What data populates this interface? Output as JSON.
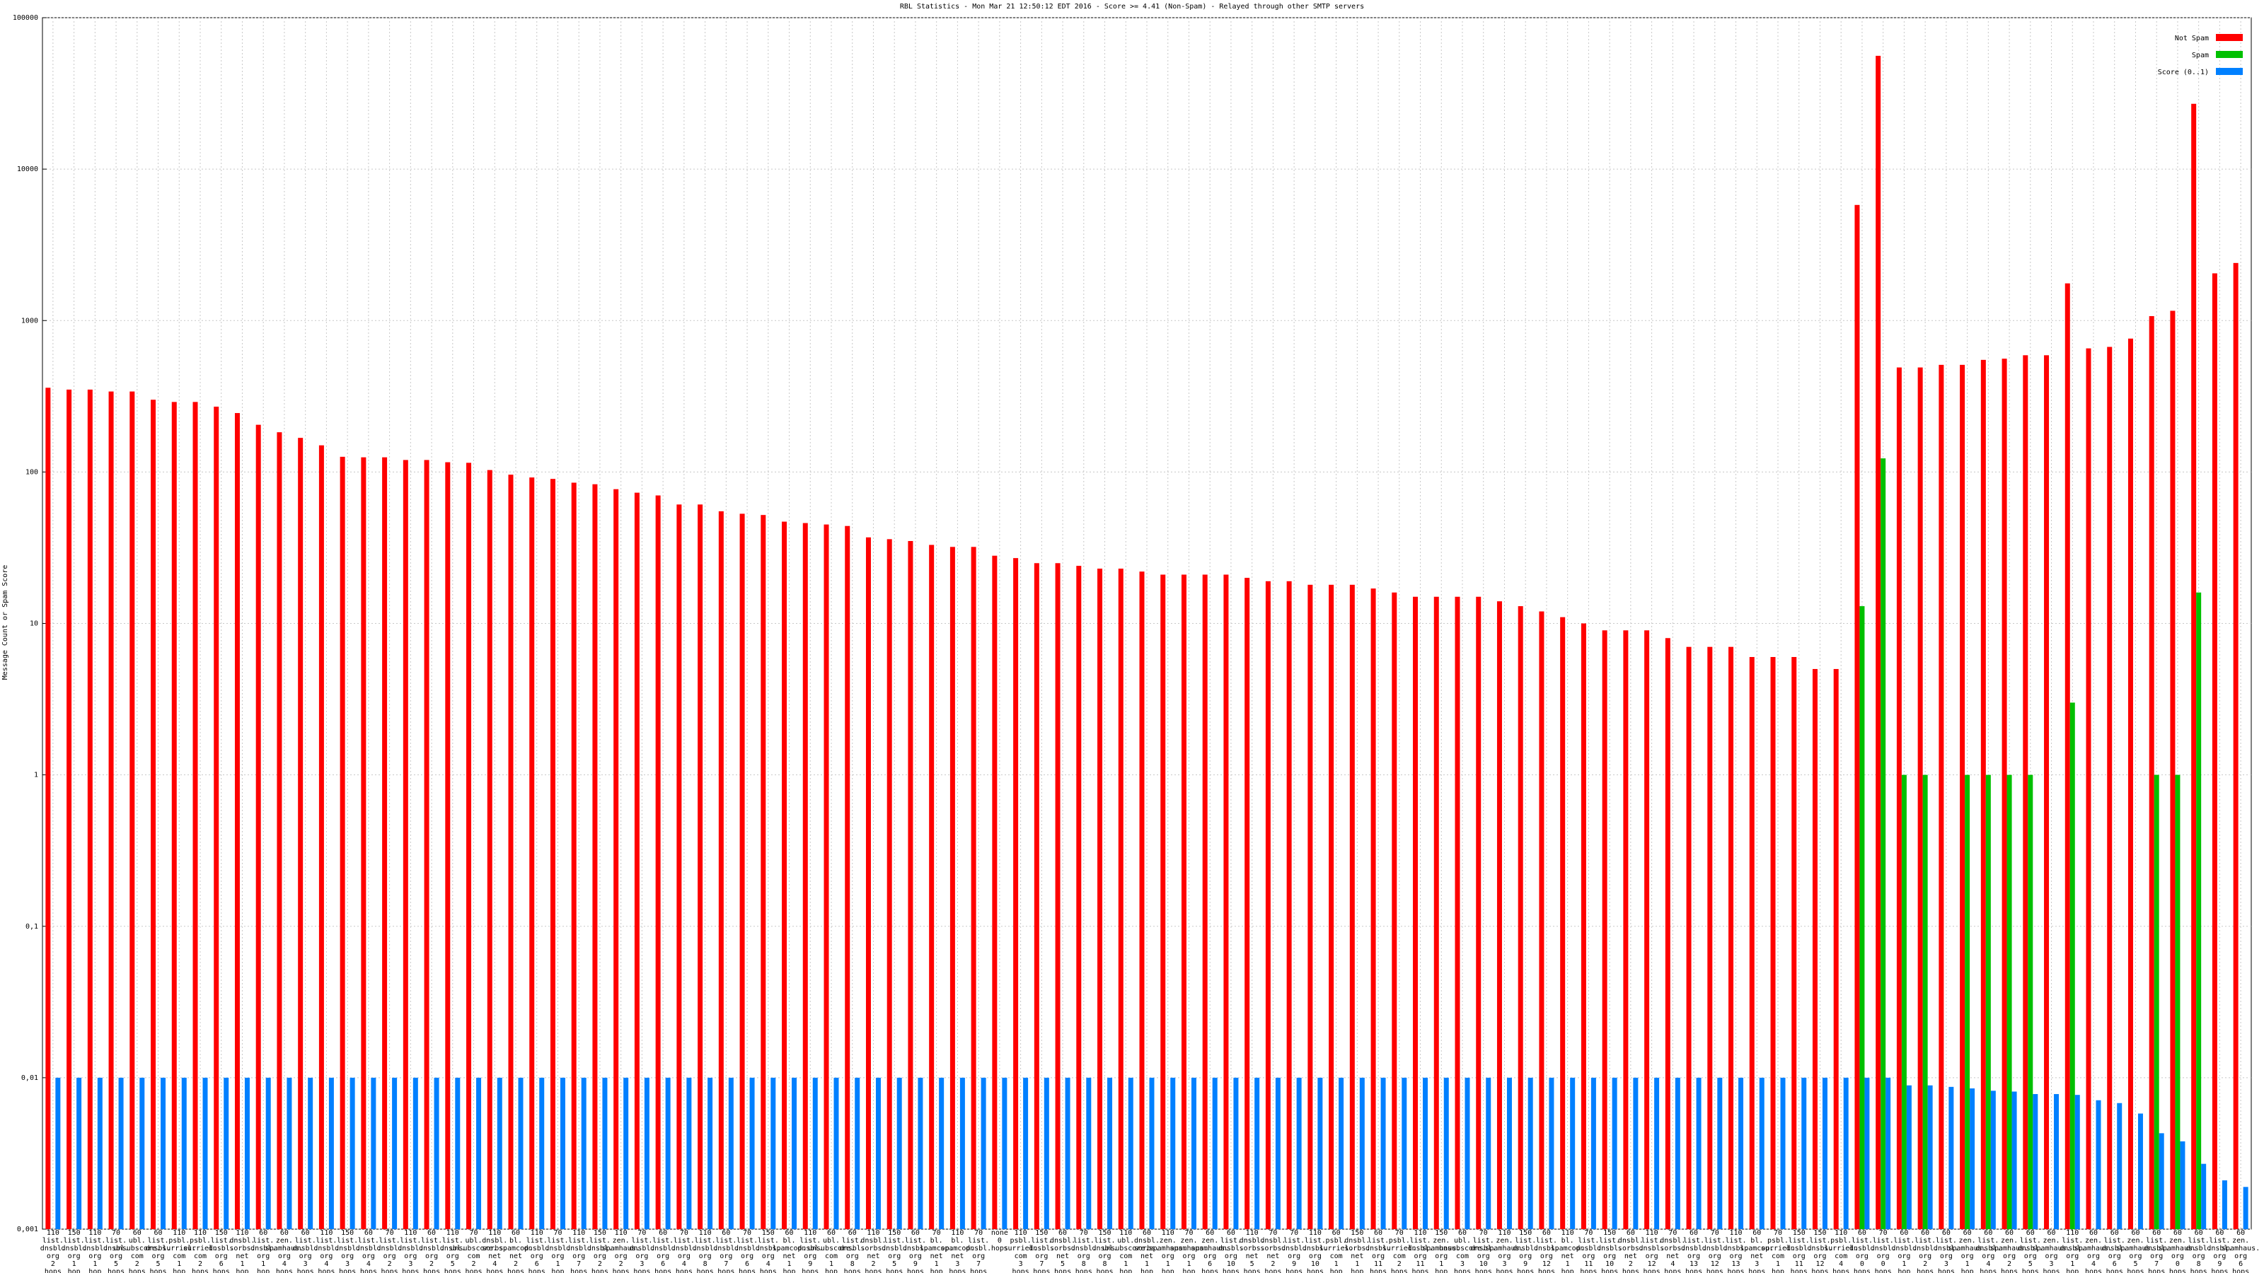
{
  "chart_data": {
    "type": "bar",
    "title": "RBL Statistics - Mon Mar 21 12:50:12 EDT 2016 - Score >= 4.41 (Non-Spam) - Relayed through other SMTP servers",
    "y_label": "Message Count or Spam Score",
    "log_scale": true,
    "grid": true,
    "legend": "top-right",
    "ylim": [
      0.001,
      100000
    ],
    "yticks": [
      {
        "value": 0.001,
        "label": "0,001"
      },
      {
        "value": 0.01,
        "label": "0,01"
      },
      {
        "value": 0.1,
        "label": "0,1"
      },
      1,
      10,
      100,
      1000,
      10000,
      100000
    ],
    "categories": [
      "110 list. dnsbl. org 2 hops",
      "150 list. dnsbl. org 1 hop",
      "110 list. dnsbl. org 1 hop",
      "70 list. dnsbl. org 5 hops",
      "60 ubl. unsubscore. com 2 hops",
      "60 list. dnsbl. org 5 hops",
      "110 psbl. surriel. com 1 hop",
      "110 psbl. surriel. com 2 hops",
      "150 list. dnsbl. org 6 hops",
      "110 dnsbl. sorbs. net 1 hop",
      "60 list. dnsbl. org 1 hop",
      "60 zen. spamhaus. org 4 hops",
      "60 list. dnsbl. org 3 hops",
      "110 list. dnsbl. org 4 hops",
      "150 list. dnsbl. org 3 hops",
      "60 list. dnsbl. org 4 hops",
      "70 list. dnsbl. org 2 hops",
      "110 list. dnsbl. org 3 hops",
      "60 list. dnsbl. org 2 hops",
      "110 list. dnsbl. org 5 hops",
      "70 ubl. unsubscore. com 2 hops",
      "110 dnsbl. sorbs. net 4 hops",
      "60 bl. spamcop. net 2 hops",
      "110 list. dnsbl. org 6 hops",
      "70 list. dnsbl. org 1 hop",
      "110 list. dnsbl. org 7 hops",
      "150 list. dnsbl. org 2 hops",
      "110 zen. spamhaus. org 2 hops",
      "70 list. dnsbl. org 3 hops",
      "60 list. dnsbl. org 6 hops",
      "70 list. dnsbl. org 4 hops",
      "110 list. dnsbl. org 8 hops",
      "60 list. dnsbl. org 7 hops",
      "70 list. dnsbl. org 6 hops",
      "150 list. dnsbl. org 4 hops",
      "60 bl. spamcop. net 1 hop",
      "110 list. dnsbl. org 9 hops",
      "60 ubl. unsubscore. com 1 hop",
      "60 list. dnsbl. org 8 hops",
      "110 dnsbl. sorbs. net 2 hops",
      "150 list. dnsbl. org 5 hops",
      "60 list. dnsbl. org 9 hops",
      "70 bl. spamcop. net 1 hop",
      "110 bl. spamcop. net 3 hops",
      "70 list. dnsbl. org 7 hops",
      "none 0 hops",
      "110 psbl. surriel. com 3 hops",
      "150 list. dnsbl. org 7 hops",
      "60 dnsbl. sorbs. net 5 hops",
      "70 list. dnsbl. org 8 hops",
      "150 list. dnsbl. org 8 hops",
      "110 ubl. unsubscore. com 1 hop",
      "60 dnsbl. sorbs. net 1 hop",
      "110 zen. spamhaus. org 1 hop",
      "70 zen. spamhaus. org 1 hop",
      "60 zen. spamhaus. org 6 hops",
      "60 list. dnsbl. org 10 hops",
      "110 dnsbl. sorbs. net 5 hops",
      "70 dnsbl. sorbs. net 2 hops",
      "70 list. dnsbl. org 9 hops",
      "110 list. dnsbl. org 10 hops",
      "60 psbl. surriel. com 1 hop",
      "150 dnsbl. sorbs. net 1 hop",
      "60 list. dnsbl. org 11 hops",
      "70 psbl. surriel. com 2 hops",
      "110 list. dnsbl. org 11 hops",
      "150 zen. spamhaus. org 1 hop",
      "60 ubl. unsubscore. com 3 hops",
      "70 list. dnsbl. org 10 hops",
      "110 zen. spamhaus. org 3 hops",
      "150 list. dnsbl. org 9 hops",
      "60 list. dnsbl. org 12 hops",
      "110 bl. spamcop. net 1 hop",
      "70 list. dnsbl. org 11 hops",
      "150 list. dnsbl. org 10 hops",
      "60 dnsbl. sorbs. net 2 hops",
      "110 list. dnsbl. org 12 hops",
      "70 dnsbl. sorbs. net 4 hops",
      "60 list. dnsbl. org 13 hops",
      "70 list. dnsbl. org 12 hops",
      "110 list. dnsbl. org 13 hops",
      "60 bl. spamcop. net 3 hops",
      "70 psbl. surriel. com 1 hop",
      "150 list. dnsbl. org 11 hops",
      "150 list. dnsbl. org 12 hops",
      "110 psbl. surriel. com 4 hops",
      "60 list. dnsbl. org 0 hops",
      "70 list. dnsbl. org 0 hops",
      "60 list. dnsbl. org 1 hop",
      "60 list. dnsbl. org 2 hops",
      "60 list. dnsbl. org 3 hops",
      "60 zen. spamhaus. org 1 hop",
      "60 list. dnsbl. org 4 hops",
      "60 zen. spamhaus. org 2 hops",
      "60 list. dnsbl. org 5 hops",
      "60 zen. spamhaus. org 3 hops",
      "110 list. dnsbl. org 1 hop",
      "60 zen. spamhaus. org 4 hops",
      "60 list. dnsbl. org 6 hops",
      "60 zen. spamhaus. org 5 hops",
      "60 list. dnsbl. org 7 hops",
      "60 zen. spamhaus. org 0 hops",
      "60 list. dnsbl. org 8 hops",
      "60 list. dnsbl. org 9 hops",
      "60 zen. spamhaus. org 6 hops"
    ],
    "series": [
      {
        "name": "Not Spam",
        "color": "#ff0000",
        "values": [
          360,
          350,
          350,
          340,
          340,
          300,
          290,
          290,
          270,
          245,
          205,
          183,
          168,
          150,
          126,
          125,
          125,
          120,
          120,
          116,
          115,
          103,
          96,
          92,
          90,
          85,
          83,
          77,
          73,
          70,
          61,
          61,
          55,
          53,
          52,
          47,
          46,
          45,
          44,
          37,
          36,
          35,
          33,
          32,
          32,
          28,
          27,
          25,
          25,
          24,
          23,
          23,
          22,
          21,
          21,
          21,
          21,
          20,
          19,
          19,
          18,
          18,
          18,
          17,
          16,
          15,
          15,
          15,
          15,
          14,
          13,
          12,
          11,
          10,
          9,
          9,
          9,
          8,
          7,
          7,
          7,
          6,
          6,
          6,
          5,
          5,
          5800,
          56000,
          490,
          490,
          510,
          510,
          550,
          560,
          590,
          590,
          1760,
          655,
          670,
          760,
          1070,
          1160,
          27000,
          2050,
          2400
        ]
      },
      {
        "name": "Spam",
        "color": "#00c000",
        "values": [
          null,
          null,
          null,
          null,
          null,
          null,
          null,
          null,
          null,
          null,
          null,
          null,
          null,
          null,
          null,
          null,
          null,
          null,
          null,
          null,
          null,
          null,
          null,
          null,
          null,
          null,
          null,
          null,
          null,
          null,
          null,
          null,
          null,
          null,
          null,
          null,
          null,
          null,
          null,
          null,
          null,
          null,
          null,
          null,
          null,
          null,
          null,
          null,
          null,
          null,
          null,
          null,
          null,
          null,
          null,
          null,
          null,
          null,
          null,
          null,
          null,
          null,
          null,
          null,
          null,
          null,
          null,
          null,
          null,
          null,
          null,
          null,
          null,
          null,
          null,
          null,
          null,
          null,
          null,
          null,
          null,
          null,
          null,
          null,
          null,
          null,
          13,
          123,
          1,
          1,
          null,
          1,
          1,
          1,
          1,
          null,
          3,
          null,
          null,
          null,
          1,
          1,
          16,
          null,
          null
        ]
      },
      {
        "name": "Score (0..1)",
        "color": "#0080ff",
        "values": [
          0.01,
          0.01,
          0.01,
          0.01,
          0.01,
          0.01,
          0.01,
          0.01,
          0.01,
          0.01,
          0.01,
          0.01,
          0.01,
          0.01,
          0.01,
          0.01,
          0.01,
          0.01,
          0.01,
          0.01,
          0.01,
          0.01,
          0.01,
          0.01,
          0.01,
          0.01,
          0.01,
          0.01,
          0.01,
          0.01,
          0.01,
          0.01,
          0.01,
          0.01,
          0.01,
          0.01,
          0.01,
          0.01,
          0.01,
          0.01,
          0.01,
          0.01,
          0.01,
          0.01,
          0.01,
          0.01,
          0.01,
          0.01,
          0.01,
          0.01,
          0.01,
          0.01,
          0.01,
          0.01,
          0.01,
          0.01,
          0.01,
          0.01,
          0.01,
          0.01,
          0.01,
          0.01,
          0.01,
          0.01,
          0.01,
          0.01,
          0.01,
          0.01,
          0.01,
          0.01,
          0.01,
          0.01,
          0.01,
          0.01,
          0.01,
          0.01,
          0.01,
          0.01,
          0.01,
          0.01,
          0.01,
          0.01,
          0.01,
          0.01,
          0.01,
          0.01,
          0.01,
          0.01,
          0.0089,
          0.0089,
          0.0087,
          0.0085,
          0.0082,
          0.0081,
          0.0078,
          0.0078,
          0.0077,
          0.0071,
          0.0068,
          0.0058,
          0.0043,
          0.0038,
          0.0027,
          0.0021,
          0.0019
        ]
      }
    ]
  }
}
